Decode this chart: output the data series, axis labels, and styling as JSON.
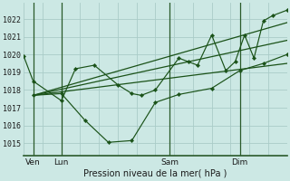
{
  "xlabel": "Pression niveau de la mer( hPa )",
  "bg_color": "#cce8e4",
  "grid_color": "#aaccc8",
  "line_color": "#1a5218",
  "vline_color": "#2a5a2a",
  "ylim": [
    1014.3,
    1022.9
  ],
  "xlim": [
    0,
    280
  ],
  "yticks": [
    1015,
    1016,
    1017,
    1018,
    1019,
    1020,
    1021,
    1022
  ],
  "xtick_positions": [
    10,
    40,
    155,
    230
  ],
  "xtick_labels": [
    "Ven",
    "Lun",
    "Sam",
    "Dim"
  ],
  "vline_positions": [
    10,
    40,
    155,
    230
  ],
  "series1_x": [
    0,
    10,
    40,
    55,
    75,
    100,
    115,
    125,
    140,
    165,
    175,
    185,
    200,
    215,
    225,
    235,
    245,
    255,
    265,
    280
  ],
  "series1_y": [
    1019.9,
    1018.5,
    1017.4,
    1019.2,
    1019.4,
    1018.3,
    1017.8,
    1017.7,
    1018.0,
    1019.8,
    1019.6,
    1019.4,
    1021.1,
    1019.1,
    1019.6,
    1021.1,
    1019.8,
    1021.9,
    1022.2,
    1022.5
  ],
  "series2_x": [
    10,
    40,
    65,
    90,
    115,
    140,
    165,
    200,
    230,
    255,
    280
  ],
  "series2_y": [
    1017.7,
    1017.8,
    1016.3,
    1015.05,
    1015.15,
    1017.3,
    1017.75,
    1018.1,
    1019.1,
    1019.5,
    1020.0
  ],
  "trend1_x": [
    10,
    280
  ],
  "trend1_y": [
    1017.7,
    1021.8
  ],
  "trend2_x": [
    10,
    280
  ],
  "trend2_y": [
    1017.7,
    1020.8
  ],
  "trend3_x": [
    10,
    280
  ],
  "trend3_y": [
    1017.7,
    1019.5
  ]
}
